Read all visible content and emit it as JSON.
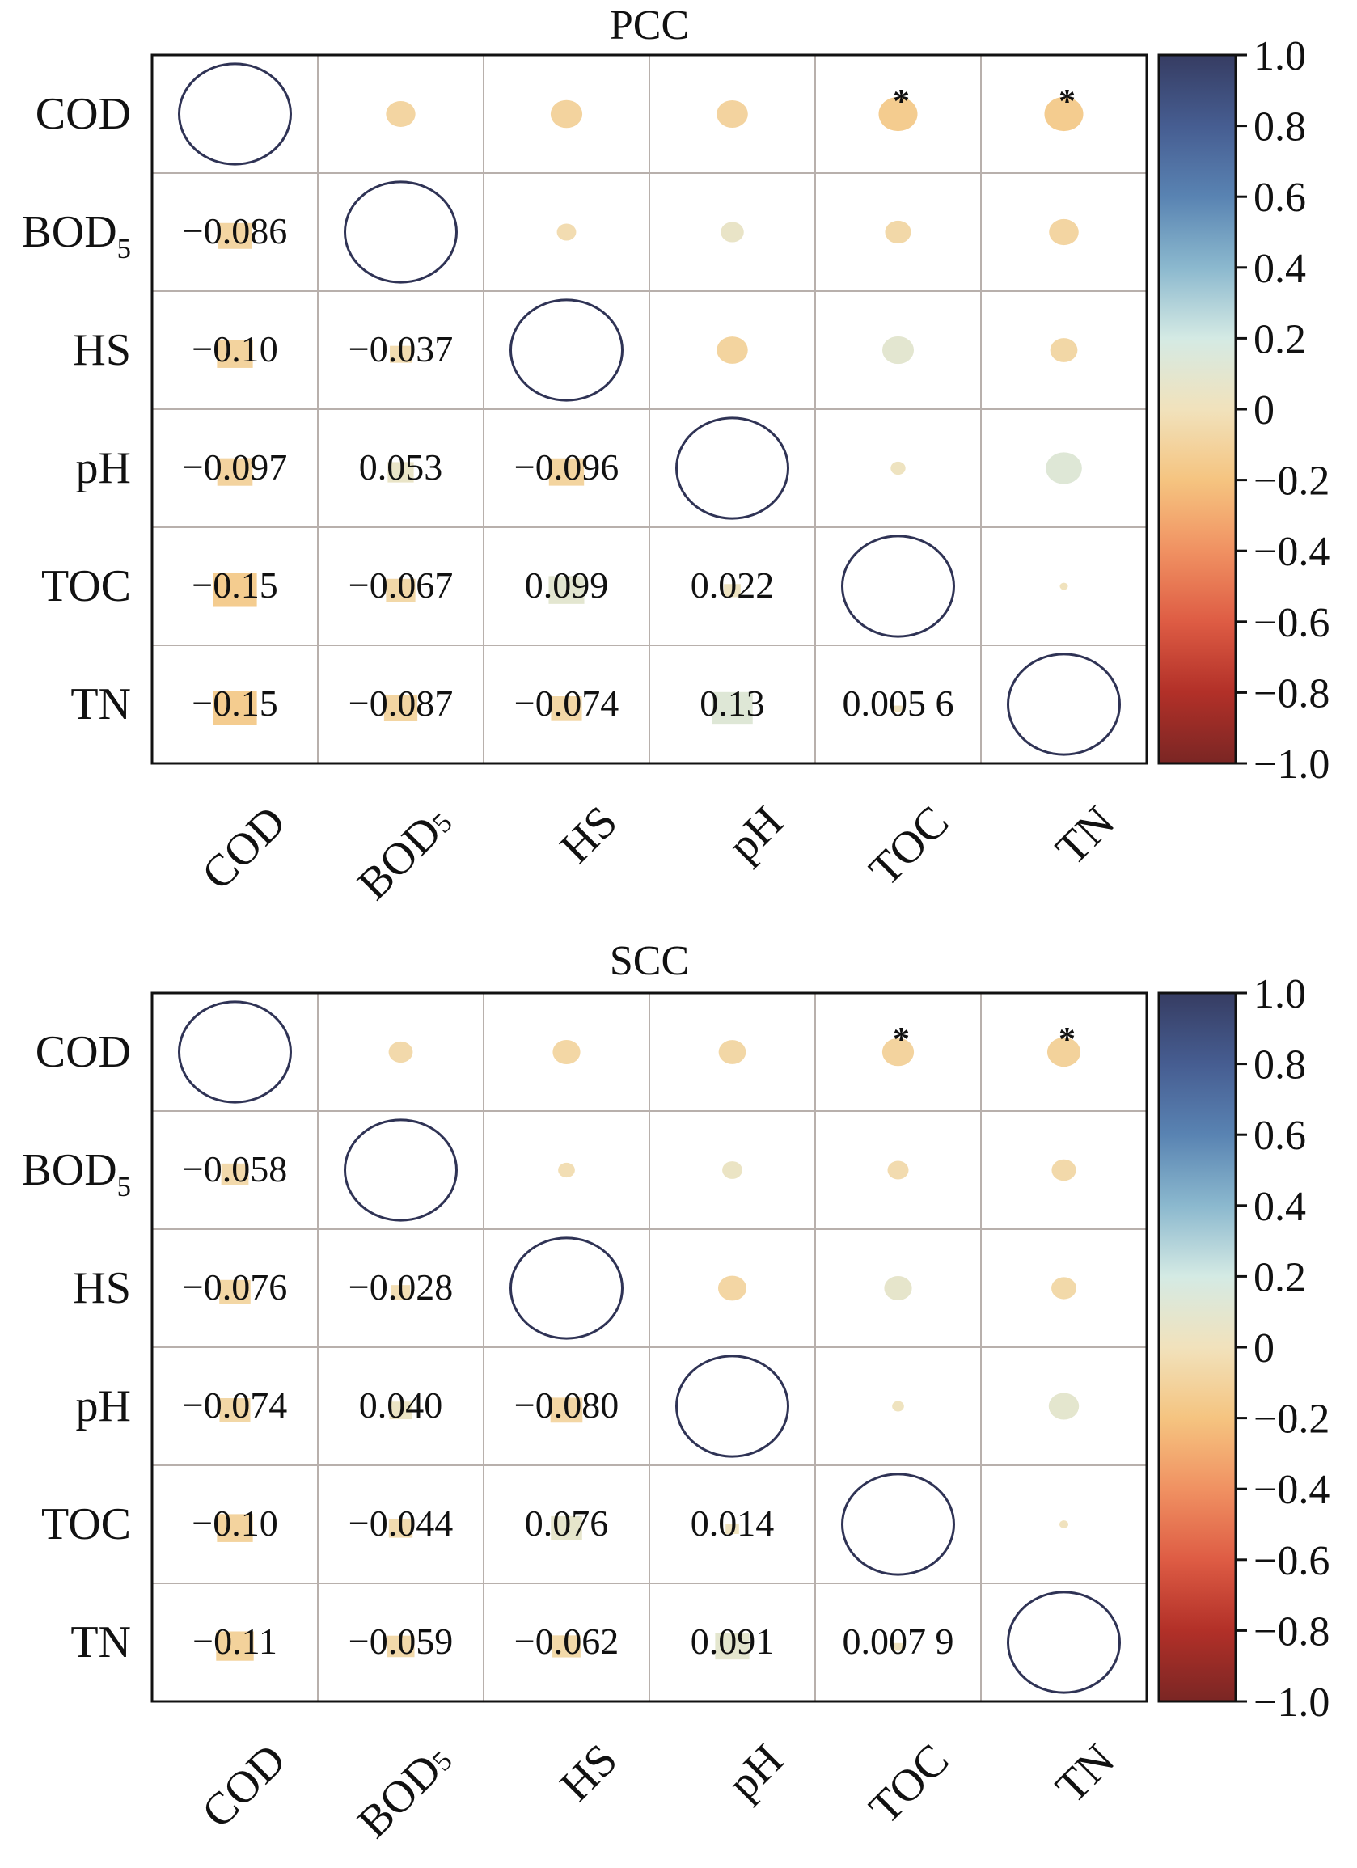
{
  "chart_data": [
    {
      "type": "heatmap",
      "title": "PCC",
      "variables": [
        "COD",
        "BOD5",
        "HS",
        "pH",
        "TOC",
        "TN"
      ],
      "lower_labels": [
        [
          "",
          "",
          "",
          "",
          "",
          ""
        ],
        [
          "−0.086",
          "",
          "",
          "",
          "",
          ""
        ],
        [
          "−0.10",
          "−0.037",
          "",
          "",
          "",
          ""
        ],
        [
          "−0.097",
          "0.053",
          "−0.096",
          "",
          "",
          ""
        ],
        [
          "−0.15",
          "−0.067",
          "0.099",
          "0.022",
          "",
          ""
        ],
        [
          "−0.15",
          "−0.087",
          "−0.074",
          "0.13",
          "0.005 6",
          ""
        ]
      ],
      "matrix": [
        [
          1,
          -0.086,
          -0.1,
          -0.097,
          -0.15,
          -0.15
        ],
        [
          -0.086,
          1,
          -0.037,
          0.053,
          -0.067,
          -0.087
        ],
        [
          -0.1,
          -0.037,
          1,
          -0.096,
          0.099,
          -0.074
        ],
        [
          -0.097,
          0.053,
          -0.096,
          1,
          0.022,
          0.13
        ],
        [
          -0.15,
          -0.067,
          0.099,
          0.022,
          1,
          0.0056
        ],
        [
          -0.15,
          -0.087,
          -0.074,
          0.13,
          0.0056,
          1
        ]
      ],
      "significance": [
        [
          "",
          "",
          "",
          "",
          "*",
          "*"
        ],
        [
          "",
          "",
          "",
          "",
          "",
          ""
        ],
        [
          "",
          "",
          "",
          "",
          "",
          ""
        ],
        [
          "",
          "",
          "",
          "",
          "",
          ""
        ],
        [
          "",
          "",
          "",
          "",
          "",
          ""
        ],
        [
          "",
          "",
          "",
          "",
          "",
          ""
        ]
      ],
      "colorbar": {
        "range": [
          -1.0,
          1.0
        ],
        "ticks": [
          "1.0",
          "0.8",
          "0.6",
          "0.4",
          "0.2",
          "0",
          "−0.2",
          "−0.4",
          "−0.6",
          "−0.8",
          "−1.0"
        ]
      }
    },
    {
      "type": "heatmap",
      "title": "SCC",
      "variables": [
        "COD",
        "BOD5",
        "HS",
        "pH",
        "TOC",
        "TN"
      ],
      "lower_labels": [
        [
          "",
          "",
          "",
          "",
          "",
          ""
        ],
        [
          "−0.058",
          "",
          "",
          "",
          "",
          ""
        ],
        [
          "−0.076",
          "−0.028",
          "",
          "",
          "",
          ""
        ],
        [
          "−0.074",
          "0.040",
          "−0.080",
          "",
          "",
          ""
        ],
        [
          "−0.10",
          "−0.044",
          "0.076",
          "0.014",
          "",
          ""
        ],
        [
          "−0.11",
          "−0.059",
          "−0.062",
          "0.091",
          "0.007 9",
          ""
        ]
      ],
      "matrix": [
        [
          1,
          -0.058,
          -0.076,
          -0.074,
          -0.1,
          -0.11
        ],
        [
          -0.058,
          1,
          -0.028,
          0.04,
          -0.044,
          -0.059
        ],
        [
          -0.076,
          -0.028,
          1,
          -0.08,
          0.076,
          -0.062
        ],
        [
          -0.074,
          0.04,
          -0.08,
          1,
          0.014,
          0.091
        ],
        [
          -0.1,
          -0.044,
          0.076,
          0.014,
          1,
          0.0079
        ],
        [
          -0.11,
          -0.059,
          -0.062,
          0.091,
          0.0079,
          1
        ]
      ],
      "significance": [
        [
          "",
          "",
          "",
          "",
          "*",
          "*"
        ],
        [
          "",
          "",
          "",
          "",
          "",
          ""
        ],
        [
          "",
          "",
          "",
          "",
          "",
          ""
        ],
        [
          "",
          "",
          "",
          "",
          "",
          ""
        ],
        [
          "",
          "",
          "",
          "",
          "",
          ""
        ],
        [
          "",
          "",
          "",
          "",
          "",
          ""
        ]
      ],
      "colorbar": {
        "range": [
          -1.0,
          1.0
        ],
        "ticks": [
          "1.0",
          "0.8",
          "0.6",
          "0.4",
          "0.2",
          "0",
          "−0.2",
          "−0.4",
          "−0.6",
          "−0.8",
          "−1.0"
        ]
      }
    }
  ],
  "colors": {
    "grid": "#b8b0ac",
    "frame": "#111111",
    "diagonal_circle": "#2f3355"
  }
}
